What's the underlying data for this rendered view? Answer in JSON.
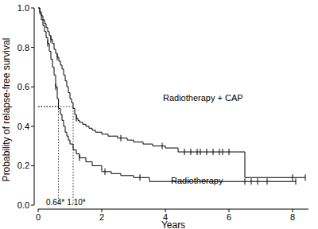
{
  "chart_data": {
    "type": "line",
    "line_style": "step",
    "x_label": "Years",
    "y_label": "Probability of relapse-free survival",
    "xlim": [
      0,
      8.5
    ],
    "xticks": [
      0,
      2,
      4,
      6,
      8
    ],
    "ylim": [
      0,
      1
    ],
    "yticks": [
      {
        "value": 0,
        "label": "0.0"
      },
      0.2,
      0.4,
      0.6,
      0.8,
      {
        "value": 1,
        "label": "1.0"
      }
    ],
    "grid": false,
    "series": [
      {
        "name": "Radiotherapy + CAP",
        "color": "#000000",
        "x": [
          0,
          0.05,
          0.1,
          0.15,
          0.2,
          0.25,
          0.3,
          0.35,
          0.4,
          0.45,
          0.5,
          0.55,
          0.6,
          0.65,
          0.7,
          0.75,
          0.8,
          0.85,
          0.9,
          0.95,
          1.0,
          1.05,
          1.1,
          1.15,
          1.2,
          1.25,
          1.3,
          1.4,
          1.5,
          1.6,
          1.7,
          1.8,
          2.0,
          2.2,
          2.5,
          2.8,
          3.0,
          3.3,
          3.6,
          4.0,
          4.4,
          6.5,
          8.4
        ],
        "values": [
          1,
          0.98,
          0.96,
          0.94,
          0.92,
          0.9,
          0.88,
          0.86,
          0.84,
          0.82,
          0.79,
          0.77,
          0.75,
          0.73,
          0.71,
          0.69,
          0.66,
          0.63,
          0.6,
          0.57,
          0.54,
          0.52,
          0.49,
          0.46,
          0.44,
          0.43,
          0.42,
          0.41,
          0.4,
          0.39,
          0.38,
          0.37,
          0.36,
          0.35,
          0.34,
          0.33,
          0.32,
          0.31,
          0.3,
          0.29,
          0.27,
          0.14,
          0.14
        ],
        "censor_x": [
          0.4,
          0.6,
          1.2,
          2.6,
          3.9,
          4.6,
          4.8,
          5.0,
          5.1,
          5.3,
          5.5,
          5.7,
          5.8,
          6.0,
          8.0,
          8.4
        ],
        "censor_y": [
          0.84,
          0.75,
          0.44,
          0.34,
          0.3,
          0.27,
          0.27,
          0.27,
          0.27,
          0.27,
          0.27,
          0.27,
          0.27,
          0.27,
          0.14,
          0.14
        ]
      },
      {
        "name": "Radiotherapy",
        "color": "#000000",
        "x": [
          0,
          0.05,
          0.1,
          0.15,
          0.2,
          0.25,
          0.3,
          0.35,
          0.4,
          0.45,
          0.5,
          0.55,
          0.6,
          0.64,
          0.7,
          0.75,
          0.8,
          0.85,
          0.9,
          0.95,
          1.0,
          1.1,
          1.2,
          1.3,
          1.5,
          1.7,
          2.0,
          2.3,
          2.6,
          3.0,
          3.5,
          8.1
        ],
        "values": [
          1,
          0.97,
          0.94,
          0.91,
          0.88,
          0.85,
          0.82,
          0.78,
          0.74,
          0.7,
          0.66,
          0.6,
          0.54,
          0.49,
          0.46,
          0.43,
          0.4,
          0.37,
          0.35,
          0.33,
          0.31,
          0.28,
          0.26,
          0.24,
          0.22,
          0.2,
          0.17,
          0.16,
          0.15,
          0.14,
          0.12,
          0.12
        ],
        "censor_x": [
          0.3,
          0.55,
          1.3,
          2.1,
          3.2,
          6.5,
          6.7,
          6.9,
          7.2,
          8.1
        ],
        "censor_y": [
          0.82,
          0.6,
          0.24,
          0.17,
          0.14,
          0.12,
          0.12,
          0.12,
          0.12,
          0.12
        ]
      }
    ],
    "annotations": [
      {
        "text": "0.64*",
        "x": 0.64,
        "y": 0.5
      },
      {
        "text": "1.10*",
        "x": 1.1,
        "y": 0.5
      }
    ]
  }
}
